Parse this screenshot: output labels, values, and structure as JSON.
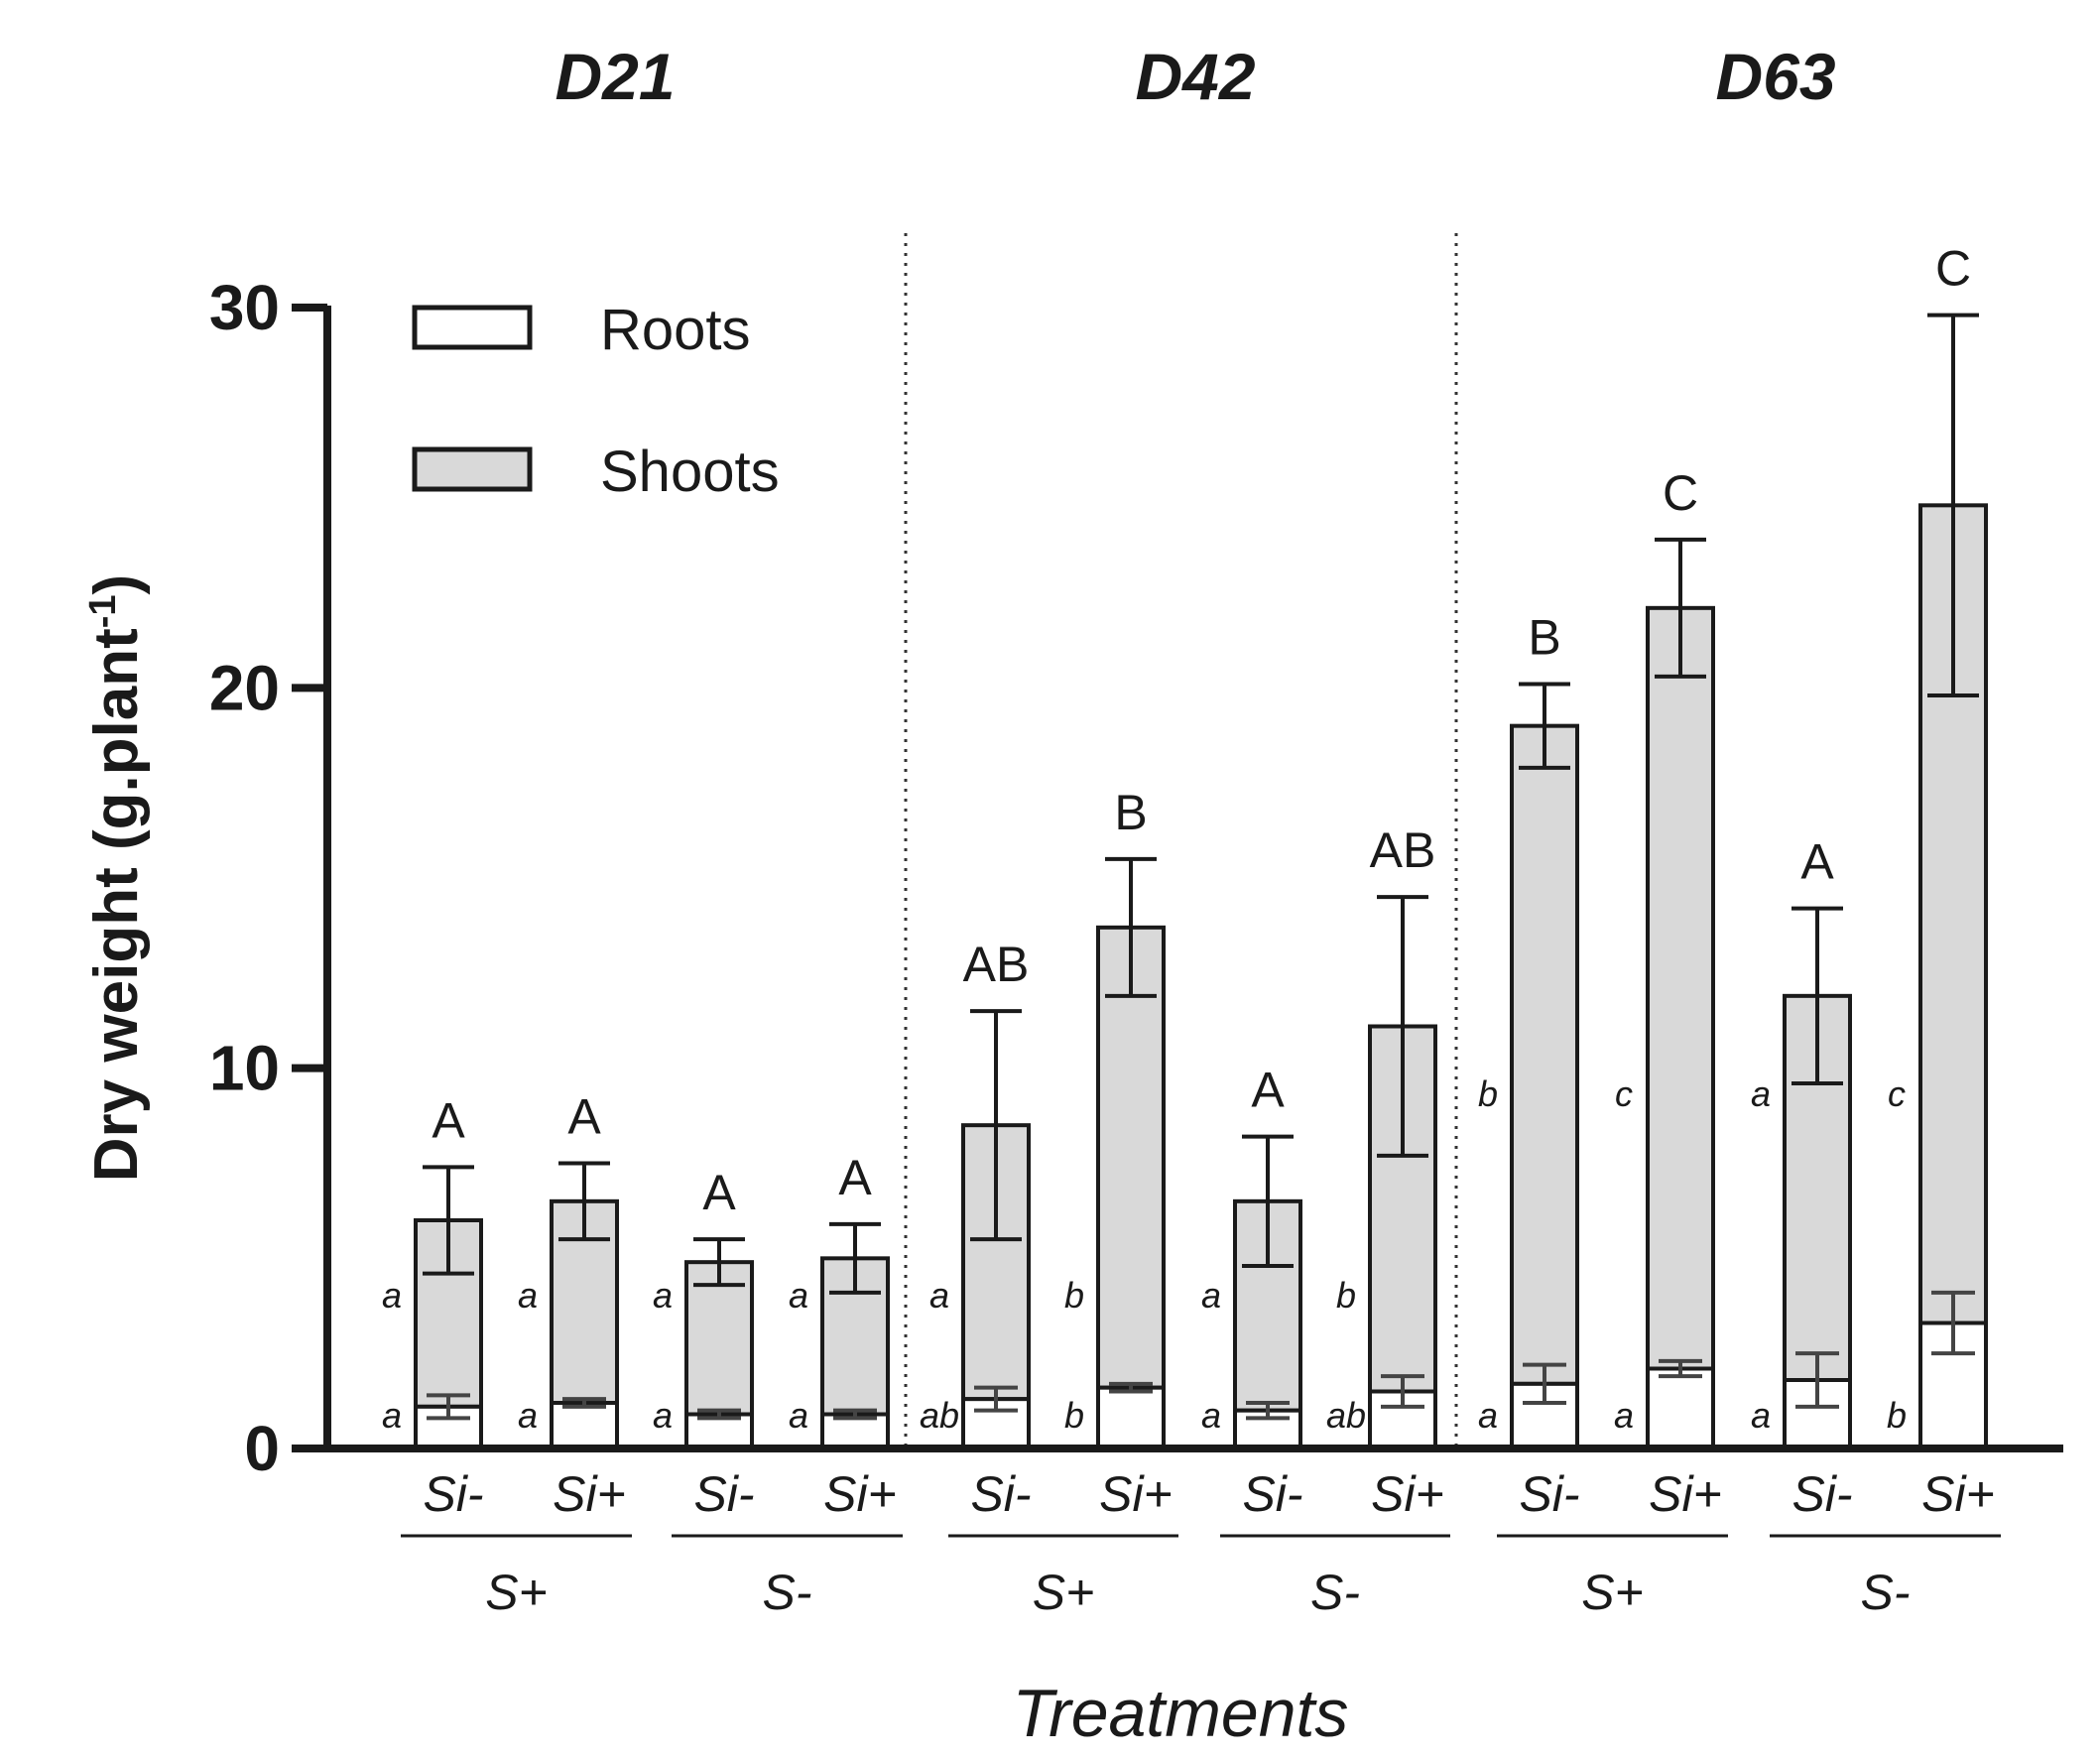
{
  "chart_data": {
    "type": "bar",
    "stacked": true,
    "ylabel": "Dry weight (g.plant",
    "ylabel_superscript": "-1",
    "ylabel_close": ")",
    "xlabel": "Treatments",
    "ylim": [
      0,
      30
    ],
    "yticks": [
      0,
      10,
      20,
      30
    ],
    "legend": {
      "position": "top-left",
      "entries": [
        {
          "name": "Roots",
          "color": "#ffffff"
        },
        {
          "name": "Shoots",
          "color": "#d9d9d9"
        }
      ]
    },
    "colors": {
      "roots": "#ffffff",
      "shoots": "#d9d9d9",
      "stroke": "#1a1a1a"
    },
    "groups": [
      {
        "day": "D21",
        "bars": [
          {
            "s": "S+",
            "si": "Si-",
            "roots": 1.1,
            "roots_err": 0.3,
            "total": 6.0,
            "total_err": 1.4,
            "upper": "A",
            "shoot_letter": "a",
            "root_letter": "a"
          },
          {
            "s": "S+",
            "si": "Si+",
            "roots": 1.2,
            "roots_err": 0.1,
            "total": 6.5,
            "total_err": 1.0,
            "upper": "A",
            "shoot_letter": "a",
            "root_letter": "a"
          },
          {
            "s": "S-",
            "si": "Si-",
            "roots": 0.9,
            "roots_err": 0.1,
            "total": 4.9,
            "total_err": 0.6,
            "upper": "A",
            "shoot_letter": "a",
            "root_letter": "a"
          },
          {
            "s": "S-",
            "si": "Si+",
            "roots": 0.9,
            "roots_err": 0.1,
            "total": 5.0,
            "total_err": 0.9,
            "upper": "A",
            "shoot_letter": "a",
            "root_letter": "a"
          }
        ]
      },
      {
        "day": "D42",
        "bars": [
          {
            "s": "S+",
            "si": "Si-",
            "roots": 1.3,
            "roots_err": 0.3,
            "total": 8.5,
            "total_err": 3.0,
            "upper": "AB",
            "shoot_letter": "a",
            "root_letter": "ab"
          },
          {
            "s": "S+",
            "si": "Si+",
            "roots": 1.6,
            "roots_err": 0.1,
            "total": 13.7,
            "total_err": 1.8,
            "upper": "B",
            "shoot_letter": "b",
            "root_letter": "b"
          },
          {
            "s": "S-",
            "si": "Si-",
            "roots": 1.0,
            "roots_err": 0.2,
            "total": 6.5,
            "total_err": 1.7,
            "upper": "A",
            "shoot_letter": "a",
            "root_letter": "a"
          },
          {
            "s": "S-",
            "si": "Si+",
            "roots": 1.5,
            "roots_err": 0.4,
            "total": 11.1,
            "total_err": 3.4,
            "upper": "AB",
            "shoot_letter": "b",
            "root_letter": "ab"
          }
        ]
      },
      {
        "day": "D63",
        "bars": [
          {
            "s": "S+",
            "si": "Si-",
            "roots": 1.7,
            "roots_err": 0.5,
            "total": 19.0,
            "total_err": 1.1,
            "upper": "B",
            "shoot_letter": "b",
            "root_letter": "a"
          },
          {
            "s": "S+",
            "si": "Si+",
            "roots": 2.1,
            "roots_err": 0.2,
            "total": 22.1,
            "total_err": 1.8,
            "upper": "C",
            "shoot_letter": "c",
            "root_letter": "a"
          },
          {
            "s": "S-",
            "si": "Si-",
            "roots": 1.8,
            "roots_err": 0.7,
            "total": 11.9,
            "total_err": 2.3,
            "upper": "A",
            "shoot_letter": "a",
            "root_letter": "a"
          },
          {
            "s": "S-",
            "si": "Si+",
            "roots": 3.3,
            "roots_err": 0.8,
            "total": 24.8,
            "total_err": 5.0,
            "upper": "C",
            "shoot_letter": "c",
            "root_letter": "b"
          }
        ]
      }
    ]
  }
}
